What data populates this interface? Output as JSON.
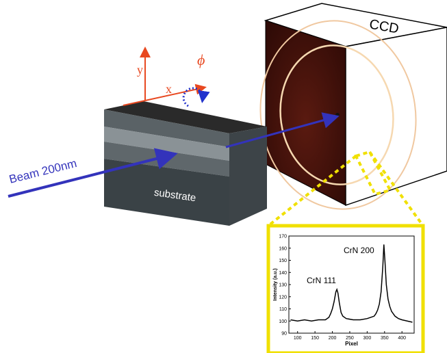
{
  "labels": {
    "ccd": "CCD",
    "beam": "Beam 200nm",
    "substrate": "substrate",
    "axis_y": "y",
    "axis_x": "x",
    "phi": "ϕ"
  },
  "chart_data": {
    "type": "line",
    "xlabel": "Pixel",
    "ylabel": "Intensity (a.u.)",
    "annotations": [
      "CrN 111",
      "CrN 200"
    ],
    "xlim": [
      75,
      435
    ],
    "xticks": [
      100,
      150,
      200,
      250,
      300,
      350,
      400
    ],
    "ylim": [
      90,
      170
    ],
    "yticks": [
      90,
      100,
      110,
      120,
      130,
      140,
      150,
      160,
      170
    ],
    "x": [
      80,
      100,
      120,
      140,
      160,
      180,
      190,
      195,
      200,
      205,
      210,
      213,
      216,
      220,
      225,
      230,
      240,
      260,
      280,
      300,
      310,
      320,
      325,
      330,
      335,
      340,
      345,
      348,
      351,
      355,
      360,
      365,
      370,
      380,
      390,
      400,
      415,
      430
    ],
    "series": [
      {
        "color": "#000000",
        "values": [
          101,
          100,
          101,
          100,
          101,
          101,
          103,
          106,
          110,
          116,
          124,
          126,
          123,
          115,
          107,
          104,
          102,
          101,
          101,
          102,
          103,
          104,
          106,
          109,
          114,
          124,
          145,
          163,
          150,
          130,
          118,
          112,
          108,
          104,
          102,
          101,
          100,
          99
        ]
      }
    ]
  }
}
